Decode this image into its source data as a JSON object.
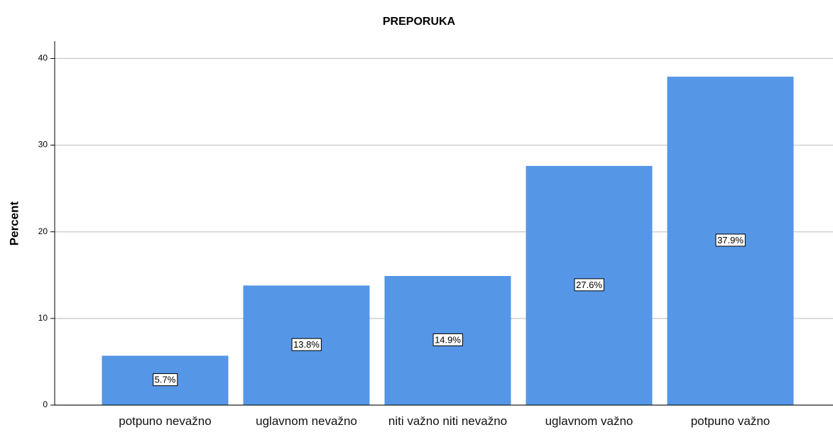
{
  "chart_data": {
    "type": "bar",
    "title": "PREPORUKA",
    "y_label": "Percent",
    "categories": [
      "potpuno nevažno",
      "uglavnom nevažno",
      "niti važno niti nevažno",
      "uglavnom važno",
      "potpuno važno"
    ],
    "values": [
      5.7,
      13.8,
      14.9,
      27.6,
      37.9
    ],
    "value_labels": [
      "5.7%",
      "13.8%",
      "14.9%",
      "27.6%",
      "37.9%"
    ],
    "color": "#5596e6",
    "ylim": [
      0,
      42
    ],
    "yticks": [
      0,
      10,
      20,
      30,
      40
    ],
    "grid": true
  }
}
